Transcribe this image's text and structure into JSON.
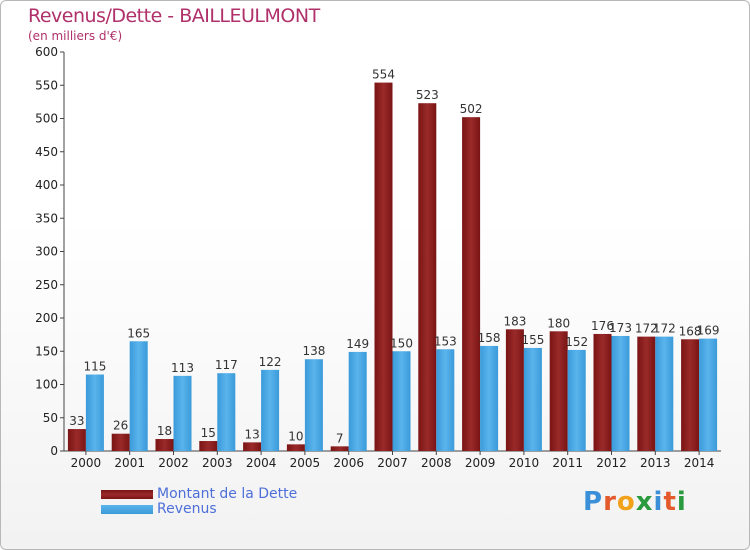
{
  "header": {
    "title": "Revenus/Dette - BAILLEULMONT",
    "subtitle": "(en milliers d'€)"
  },
  "legend": {
    "debt_label": "Montant de la Dette",
    "revenue_label": "Revenus"
  },
  "logo": {
    "text": "Proxiti",
    "letters": [
      "P",
      "r",
      "o",
      "x",
      "i",
      "t",
      "i"
    ],
    "letter_colors": [
      "#3a8fd8",
      "#e35b2d",
      "#f2a21a",
      "#2a9a3e",
      "#3a8fd8",
      "#e35b2d",
      "#2a9a3e"
    ]
  },
  "colors": {
    "debt": "#7a1414",
    "debt_light": "#9a2a2a",
    "revenue": "#3a9ad9",
    "revenue_light": "#5ab4ec",
    "axis_text": "#222222",
    "grid": "#cccccc"
  },
  "chart_data": {
    "type": "bar",
    "title": "Revenus/Dette - BAILLEULMONT",
    "ylabel": "(en milliers d'€)",
    "xlabel": "",
    "ylim": [
      0,
      600
    ],
    "yticks": [
      0,
      50,
      100,
      150,
      200,
      250,
      300,
      350,
      400,
      450,
      500,
      550,
      600
    ],
    "grid": false,
    "legend_position": "bottom-left",
    "categories": [
      "2000",
      "2001",
      "2002",
      "2003",
      "2004",
      "2005",
      "2006",
      "2007",
      "2008",
      "2009",
      "2010",
      "2011",
      "2012",
      "2013",
      "2014"
    ],
    "series": [
      {
        "name": "Montant de la Dette",
        "values": [
          33,
          26,
          18,
          15,
          13,
          10,
          7,
          554,
          523,
          502,
          183,
          180,
          176,
          172,
          168
        ]
      },
      {
        "name": "Revenus",
        "values": [
          115,
          165,
          113,
          117,
          122,
          138,
          149,
          150,
          153,
          158,
          155,
          152,
          173,
          172,
          169
        ]
      }
    ]
  }
}
